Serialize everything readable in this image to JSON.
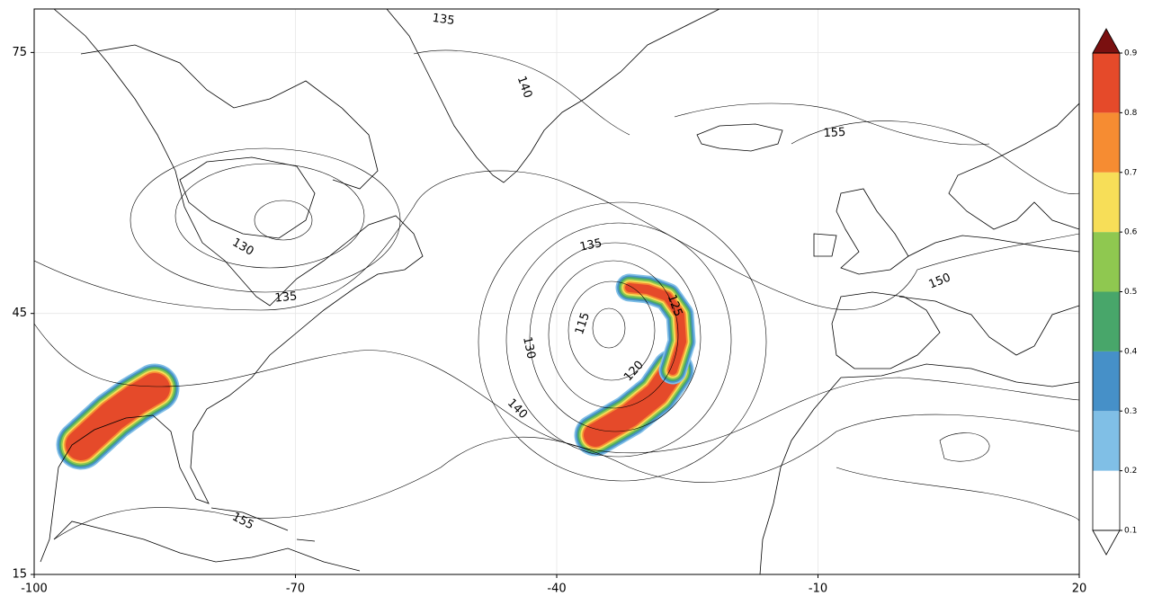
{
  "map": {
    "xlim": [
      -100,
      20
    ],
    "ylim": [
      15,
      80
    ],
    "xticks": [
      -100,
      -70,
      -40,
      -10,
      20
    ],
    "yticks": [
      15,
      45,
      75
    ],
    "grid": true,
    "contour_labels": [
      135,
      140,
      130,
      135,
      155,
      135,
      115,
      130,
      140,
      120,
      125,
      155,
      150
    ],
    "colorbar": {
      "ticks": [
        0.1,
        0.2,
        0.3,
        0.4,
        0.5,
        0.6,
        0.7,
        0.8,
        0.9
      ],
      "colors": [
        "#ffffff",
        "#80bfe6",
        "#4690c8",
        "#48a66a",
        "#8fc850",
        "#f7de58",
        "#f68c32",
        "#e54a2a"
      ],
      "extend_colors": [
        "#7a1010",
        "#ffffff"
      ]
    }
  }
}
